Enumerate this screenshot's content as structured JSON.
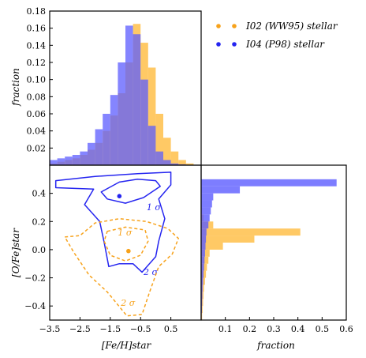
{
  "colors": {
    "i02": "#f7a21b",
    "i04": "#2525f0",
    "i02_fill": "#ffc04a",
    "i04_fill": "#5c5cff",
    "overlap_fill": "#6a4fb0"
  },
  "chart_data": [
    {
      "type": "bar",
      "panel": "top-histogram",
      "xlabel": "",
      "ylabel": "fraction",
      "xlim": [
        -3.5,
        1.5
      ],
      "ylim": [
        0,
        0.18
      ],
      "yticks": [
        0.02,
        0.04,
        0.06,
        0.08,
        0.1,
        0.12,
        0.14,
        0.16,
        0.18
      ],
      "ytick_labels": [
        "0.02",
        "0.04",
        "0.06",
        "0.08",
        "0.10",
        "0.12",
        "0.14",
        "0.16",
        "0.18"
      ],
      "bin_edges": [
        -3.5,
        -3.25,
        -3.0,
        -2.75,
        -2.5,
        -2.25,
        -2.0,
        -1.75,
        -1.5,
        -1.25,
        -1.0,
        -0.75,
        -0.5,
        -0.25,
        0.0,
        0.25,
        0.5,
        0.75,
        1.0,
        1.25,
        1.5
      ],
      "series": [
        {
          "name": "I02 (WW95) stellar",
          "color": "i02",
          "values": [
            0.002,
            0.004,
            0.006,
            0.008,
            0.012,
            0.018,
            0.026,
            0.04,
            0.058,
            0.084,
            0.12,
            0.165,
            0.143,
            0.114,
            0.06,
            0.032,
            0.016,
            0.006,
            0.002,
            0.0
          ]
        },
        {
          "name": "I04 (P98) stellar",
          "color": "i04",
          "values": [
            0.006,
            0.008,
            0.01,
            0.012,
            0.016,
            0.026,
            0.042,
            0.06,
            0.082,
            0.12,
            0.163,
            0.153,
            0.1,
            0.046,
            0.016,
            0.006,
            0.002,
            0.001,
            0.0,
            0.0
          ]
        }
      ]
    },
    {
      "type": "scatter",
      "panel": "contour",
      "xlabel": "[Fe/H]star",
      "ylabel": "[O/Fe]star",
      "xlim": [
        -3.5,
        1.5
      ],
      "ylim": [
        -0.5,
        0.6
      ],
      "xticks": [
        -3.5,
        -2.5,
        -1.5,
        -0.5,
        0.5
      ],
      "xtick_labels": [
        "−3.5",
        "−2.5",
        "−1.5",
        "−0.5",
        "0.5"
      ],
      "yticks": [
        -0.4,
        -0.2,
        0.0,
        0.2,
        0.4
      ],
      "ytick_labels": [
        "−0.4",
        "−0.2",
        "0.0",
        "0.2",
        "0.4"
      ],
      "series": [
        {
          "name": "I04 (P98) stellar",
          "color": "i04",
          "style": "solid",
          "peak": [
            -1.2,
            0.38
          ],
          "contours": [
            {
              "label": "1 σ",
              "label_at": [
                -0.3,
                0.28
              ],
              "points": [
                [
                  -1.8,
                  0.41
                ],
                [
                  -1.2,
                  0.48
                ],
                [
                  -0.6,
                  0.5
                ],
                [
                  0.0,
                  0.49
                ],
                [
                  0.15,
                  0.45
                ],
                [
                  -0.4,
                  0.37
                ],
                [
                  -1.0,
                  0.33
                ],
                [
                  -1.6,
                  0.36
                ],
                [
                  -1.8,
                  0.41
                ]
              ]
            },
            {
              "label": "2 σ",
              "label_at": [
                -0.4,
                -0.18
              ],
              "points": [
                [
                  -3.3,
                  0.49
                ],
                [
                  -2.0,
                  0.52
                ],
                [
                  -0.6,
                  0.54
                ],
                [
                  0.5,
                  0.55
                ],
                [
                  0.5,
                  0.46
                ],
                [
                  0.1,
                  0.36
                ],
                [
                  0.3,
                  0.22
                ],
                [
                  0.1,
                  0.06
                ],
                [
                  0.0,
                  -0.05
                ],
                [
                  -0.45,
                  -0.16
                ],
                [
                  -0.75,
                  -0.1
                ],
                [
                  -1.2,
                  -0.1
                ],
                [
                  -1.55,
                  -0.12
                ],
                [
                  -1.7,
                  0.05
                ],
                [
                  -1.85,
                  0.2
                ],
                [
                  -2.35,
                  0.32
                ],
                [
                  -2.05,
                  0.43
                ],
                [
                  -3.3,
                  0.44
                ],
                [
                  -3.3,
                  0.49
                ]
              ]
            }
          ]
        },
        {
          "name": "I02 (WW95) stellar",
          "color": "i02",
          "style": "dashed",
          "peak": [
            -0.9,
            -0.01
          ],
          "contours": [
            {
              "label": "1 σ",
              "label_at": [
                -1.25,
                0.1
              ],
              "points": [
                [
                  -1.6,
                  0.13
                ],
                [
                  -1.0,
                  0.16
                ],
                [
                  -0.35,
                  0.14
                ],
                [
                  -0.25,
                  0.06
                ],
                [
                  -0.5,
                  -0.04
                ],
                [
                  -1.0,
                  -0.08
                ],
                [
                  -1.5,
                  -0.04
                ],
                [
                  -1.7,
                  0.06
                ],
                [
                  -1.6,
                  0.13
                ]
              ]
            },
            {
              "label": "2 σ",
              "label_at": [
                -1.15,
                -0.4
              ],
              "points": [
                [
                  -3.0,
                  0.09
                ],
                [
                  -2.5,
                  0.1
                ],
                [
                  -2.0,
                  0.19
                ],
                [
                  -1.2,
                  0.22
                ],
                [
                  -0.3,
                  0.2
                ],
                [
                  0.4,
                  0.15
                ],
                [
                  0.75,
                  0.08
                ],
                [
                  0.55,
                  -0.03
                ],
                [
                  0.1,
                  -0.12
                ],
                [
                  -0.2,
                  -0.3
                ],
                [
                  -0.45,
                  -0.46
                ],
                [
                  -0.95,
                  -0.47
                ],
                [
                  -1.6,
                  -0.3
                ],
                [
                  -2.2,
                  -0.18
                ],
                [
                  -2.7,
                  -0.02
                ],
                [
                  -3.0,
                  0.09
                ]
              ]
            }
          ]
        }
      ]
    },
    {
      "type": "bar",
      "panel": "right-histogram",
      "orientation": "horizontal",
      "xlabel": "fraction",
      "ylabel": "",
      "xlim": [
        0,
        0.6
      ],
      "ylim": [
        -0.5,
        0.6
      ],
      "xticks": [
        0.1,
        0.2,
        0.3,
        0.4,
        0.5,
        0.6
      ],
      "xtick_labels": [
        "0.1",
        "0.2",
        "0.3",
        "0.4",
        "0.5",
        "0.6"
      ],
      "bin_edges": [
        -0.5,
        -0.45,
        -0.4,
        -0.35,
        -0.3,
        -0.25,
        -0.2,
        -0.15,
        -0.1,
        -0.05,
        0.0,
        0.05,
        0.1,
        0.15,
        0.2,
        0.25,
        0.3,
        0.35,
        0.4,
        0.45,
        0.5,
        0.55
      ],
      "series": [
        {
          "name": "I02 (WW95) stellar",
          "color": "i02",
          "values": [
            0.004,
            0.006,
            0.008,
            0.01,
            0.012,
            0.016,
            0.02,
            0.024,
            0.03,
            0.035,
            0.09,
            0.22,
            0.41,
            0.05,
            0.01,
            0.004,
            0.002,
            0.0,
            0.0,
            0.0,
            0.0
          ]
        },
        {
          "name": "I04 (P98) stellar",
          "color": "i04",
          "values": [
            0.002,
            0.003,
            0.004,
            0.005,
            0.006,
            0.008,
            0.01,
            0.012,
            0.014,
            0.016,
            0.018,
            0.02,
            0.022,
            0.03,
            0.035,
            0.04,
            0.045,
            0.05,
            0.16,
            0.56,
            0.0
          ]
        }
      ]
    }
  ],
  "legend": {
    "items": [
      {
        "label": "I02 (WW95) stellar",
        "color": "i02"
      },
      {
        "label": "I04 (P98) stellar",
        "color": "i04"
      }
    ]
  }
}
